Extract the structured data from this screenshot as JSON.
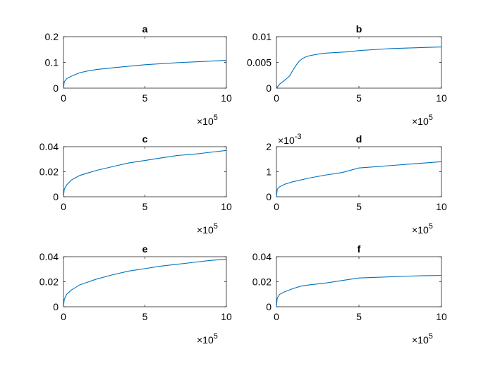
{
  "chart_data": [
    {
      "type": "line",
      "title": "a",
      "xlim": [
        0,
        1000000
      ],
      "ylim": [
        0,
        0.2
      ],
      "xticks": [
        0,
        500000,
        1000000
      ],
      "xtick_labels": [
        "0",
        "5",
        "10"
      ],
      "x_multiplier": "10^5",
      "yticks": [
        0,
        0.1,
        0.2
      ],
      "ytick_labels": [
        "0",
        "0.1",
        "0.2"
      ],
      "y_multiplier": "",
      "color": "#0072BD",
      "series": [
        {
          "x": [
            0,
            5000,
            20000,
            50000,
            100000,
            150000,
            200000,
            300000,
            400000,
            500000,
            600000,
            700000,
            800000,
            900000,
            1000000
          ],
          "y": [
            0,
            0.025,
            0.037,
            0.047,
            0.06,
            0.067,
            0.072,
            0.079,
            0.085,
            0.091,
            0.095,
            0.099,
            0.102,
            0.105,
            0.108
          ]
        }
      ]
    },
    {
      "type": "line",
      "title": "b",
      "xlim": [
        0,
        1000000
      ],
      "ylim": [
        0,
        0.01
      ],
      "xticks": [
        0,
        500000,
        1000000
      ],
      "xtick_labels": [
        "0",
        "5",
        "10"
      ],
      "x_multiplier": "10^5",
      "yticks": [
        0,
        0.005,
        0.01
      ],
      "ytick_labels": [
        "0",
        "0.005",
        "0.01"
      ],
      "y_multiplier": "",
      "color": "#0072BD",
      "series": [
        {
          "x": [
            0,
            20000,
            40000,
            60000,
            80000,
            100000,
            120000,
            140000,
            160000,
            180000,
            200000,
            250000,
            300000,
            400000,
            450000,
            500000,
            600000,
            700000,
            800000,
            900000,
            1000000
          ],
          "y": [
            0,
            0.0008,
            0.0013,
            0.0018,
            0.0024,
            0.0035,
            0.0045,
            0.0053,
            0.0058,
            0.0061,
            0.0063,
            0.0066,
            0.0068,
            0.007,
            0.0071,
            0.0073,
            0.0075,
            0.0077,
            0.0078,
            0.0079,
            0.008
          ]
        }
      ]
    },
    {
      "type": "line",
      "title": "c",
      "xlim": [
        0,
        1000000
      ],
      "ylim": [
        0,
        0.04
      ],
      "xticks": [
        0,
        500000,
        1000000
      ],
      "xtick_labels": [
        "0",
        "5",
        "10"
      ],
      "x_multiplier": "10^5",
      "yticks": [
        0,
        0.02,
        0.04
      ],
      "ytick_labels": [
        "0",
        "0.02",
        "0.04"
      ],
      "y_multiplier": "",
      "color": "#0072BD",
      "series": [
        {
          "x": [
            0,
            5000,
            20000,
            50000,
            100000,
            200000,
            300000,
            400000,
            500000,
            600000,
            700000,
            800000,
            900000,
            1000000
          ],
          "y": [
            0,
            0.006,
            0.0095,
            0.0135,
            0.017,
            0.021,
            0.024,
            0.027,
            0.029,
            0.031,
            0.033,
            0.034,
            0.0355,
            0.037
          ]
        }
      ]
    },
    {
      "type": "line",
      "title": "d",
      "xlim": [
        0,
        1000000
      ],
      "ylim": [
        0,
        0.002
      ],
      "xticks": [
        0,
        500000,
        1000000
      ],
      "xtick_labels": [
        "0",
        "5",
        "10"
      ],
      "x_multiplier": "10^5",
      "yticks": [
        0,
        0.001,
        0.002
      ],
      "ytick_labels": [
        "0",
        "1",
        "2"
      ],
      "y_multiplier": "10^-3",
      "color": "#0072BD",
      "series": [
        {
          "x": [
            0,
            5000,
            20000,
            50000,
            100000,
            200000,
            300000,
            400000,
            500000,
            600000,
            700000,
            800000,
            900000,
            1000000
          ],
          "y": [
            0,
            0.0003,
            0.0004,
            0.0005,
            0.0006,
            0.00075,
            0.00087,
            0.00097,
            0.00115,
            0.0012,
            0.00125,
            0.0013,
            0.00135,
            0.0014
          ]
        }
      ]
    },
    {
      "type": "line",
      "title": "e",
      "xlim": [
        0,
        1000000
      ],
      "ylim": [
        0,
        0.04
      ],
      "xticks": [
        0,
        500000,
        1000000
      ],
      "xtick_labels": [
        "0",
        "5",
        "10"
      ],
      "x_multiplier": "10^5",
      "yticks": [
        0,
        0.02,
        0.04
      ],
      "ytick_labels": [
        "0",
        "0.02",
        "0.04"
      ],
      "y_multiplier": "",
      "color": "#0072BD",
      "series": [
        {
          "x": [
            0,
            5000,
            20000,
            50000,
            100000,
            200000,
            300000,
            400000,
            500000,
            600000,
            700000,
            800000,
            900000,
            1000000
          ],
          "y": [
            0,
            0.006,
            0.01,
            0.0135,
            0.0175,
            0.022,
            0.0255,
            0.0285,
            0.0305,
            0.0325,
            0.034,
            0.0355,
            0.037,
            0.038
          ]
        }
      ]
    },
    {
      "type": "line",
      "title": "f",
      "xlim": [
        0,
        1000000
      ],
      "ylim": [
        0,
        0.04
      ],
      "xticks": [
        0,
        500000,
        1000000
      ],
      "xtick_labels": [
        "0",
        "5",
        "10"
      ],
      "x_multiplier": "10^5",
      "yticks": [
        0,
        0.02,
        0.04
      ],
      "ytick_labels": [
        "0",
        "0.02",
        "0.04"
      ],
      "y_multiplier": "",
      "color": "#0072BD",
      "series": [
        {
          "x": [
            0,
            5000,
            20000,
            50000,
            100000,
            150000,
            200000,
            300000,
            400000,
            500000,
            600000,
            700000,
            800000,
            900000,
            1000000
          ],
          "y": [
            0,
            0.007,
            0.01,
            0.012,
            0.0145,
            0.0165,
            0.0175,
            0.019,
            0.021,
            0.023,
            0.0235,
            0.024,
            0.0245,
            0.0248,
            0.025
          ]
        }
      ]
    }
  ]
}
